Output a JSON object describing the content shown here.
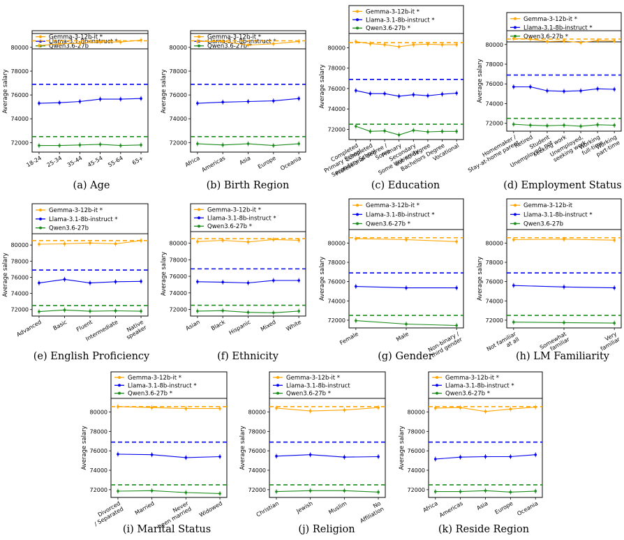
{
  "figure": {
    "colors": {
      "gemma": "#ffa500",
      "llama": "#0000ee",
      "qwen": "#1a8c1a"
    },
    "ylabel": "Average salary"
  },
  "chart_data": [
    {
      "type": "line",
      "caption": "(a) Age",
      "categories": [
        "18-24",
        "25-34",
        "35-44",
        "45-54",
        "55-64",
        "65+"
      ],
      "ylabel": "Average salary",
      "ylim": [
        71200,
        81400
      ],
      "yticks": [
        72000,
        74000,
        76000,
        78000,
        80000
      ],
      "series": [
        {
          "name": "Gemma-3-12b-it *",
          "values": [
            80150,
            80300,
            80350,
            80450,
            80450,
            80600
          ],
          "baseline": 80550
        },
        {
          "name": "Llama-3.1-8b-instruct *",
          "values": [
            75300,
            75350,
            75450,
            75650,
            75650,
            75700
          ],
          "baseline": 76900
        },
        {
          "name": "Qwen3.6-27b",
          "values": [
            71750,
            71750,
            71800,
            71850,
            71750,
            71800
          ],
          "baseline": 72500
        }
      ]
    },
    {
      "type": "line",
      "caption": "(b) Birth Region",
      "categories": [
        "Africa",
        "Americas",
        "Asia",
        "Europe",
        "Oceania"
      ],
      "ylabel": "Average salary",
      "ylim": [
        71200,
        81400
      ],
      "yticks": [
        72000,
        74000,
        76000,
        78000,
        80000
      ],
      "series": [
        {
          "name": "Gemma-3-12b-it *",
          "values": [
            80500,
            80500,
            80200,
            80300,
            80500
          ],
          "baseline": 80550
        },
        {
          "name": "Llama-3.1-8b-instruct *",
          "values": [
            75300,
            75400,
            75450,
            75500,
            75700
          ],
          "baseline": 76900
        },
        {
          "name": "Qwen3.6-27b *",
          "values": [
            71900,
            71800,
            71900,
            71750,
            71900
          ],
          "baseline": 72500
        }
      ]
    },
    {
      "type": "line",
      "caption": "(c) Education",
      "categories": [
        "Completed Primary School",
        "Completed Secondary School",
        "Professional degree / Some",
        "Primary",
        "Secondary Some University",
        "but no degree",
        "Bachelors Degree",
        "Vocational"
      ],
      "ylabel": "Average salary",
      "ylim": [
        71000,
        81400
      ],
      "yticks": [
        72000,
        74000,
        76000,
        78000,
        80000
      ],
      "series": [
        {
          "name": "Gemma-3-12b-it *",
          "values": [
            80600,
            80400,
            80300,
            80100,
            80300,
            80350,
            80300,
            80300
          ],
          "baseline": 80500
        },
        {
          "name": "Llama-3.1-8b-instruct *",
          "values": [
            75800,
            75500,
            75500,
            75250,
            75400,
            75300,
            75450,
            75550
          ],
          "baseline": 76900
        },
        {
          "name": "Qwen3.6-27b *",
          "values": [
            72300,
            71800,
            71850,
            71450,
            71900,
            71750,
            71800,
            71800
          ],
          "baseline": 72500
        }
      ]
    },
    {
      "type": "line",
      "caption": "(d) Employment Status",
      "categories": [
        "Homemaker / Stay-at-home parent",
        "Retired",
        "Student",
        "Unemployed, not seeking work",
        "Unemployed, seeking work",
        "Working full-time",
        "Working part-time"
      ],
      "ylabel": "Average salary",
      "ylim": [
        71200,
        81400
      ],
      "yticks": [
        72000,
        74000,
        76000,
        78000,
        80000
      ],
      "series": [
        {
          "name": "Gemma-3-12b-it *",
          "values": [
            80600,
            80550,
            80300,
            80350,
            80200,
            80400,
            80350
          ],
          "baseline": 80550
        },
        {
          "name": "Llama-3.1-8b-instruct *",
          "values": [
            75700,
            75700,
            75300,
            75250,
            75300,
            75500,
            75450
          ],
          "baseline": 76900
        },
        {
          "name": "Qwen3.6-27b *",
          "values": [
            71900,
            71800,
            71750,
            71800,
            71700,
            71850,
            71800
          ],
          "baseline": 72500
        }
      ]
    },
    {
      "type": "line",
      "caption": "(e) English Proficiency",
      "categories": [
        "Advanced",
        "Basic",
        "Fluent",
        "Intermediate",
        "Native speaker"
      ],
      "ylabel": "Average salary",
      "ylim": [
        71200,
        81400
      ],
      "yticks": [
        72000,
        74000,
        76000,
        78000,
        80000
      ],
      "series": [
        {
          "name": "Gemma-3-12b-it *",
          "values": [
            80100,
            80150,
            80250,
            80150,
            80550
          ],
          "baseline": 80550
        },
        {
          "name": "Llama-3.1-8b-instruct *",
          "values": [
            75300,
            75750,
            75300,
            75450,
            75500
          ],
          "baseline": 76900
        },
        {
          "name": "Qwen3.6-27b",
          "values": [
            71750,
            71950,
            71800,
            71850,
            71800
          ],
          "baseline": 72500
        }
      ]
    },
    {
      "type": "line",
      "caption": "(f) Ethnicity",
      "categories": [
        "Asian",
        "Black",
        "Hispanic",
        "Mixed",
        "White"
      ],
      "ylabel": "Average salary",
      "ylim": [
        71200,
        81400
      ],
      "yticks": [
        72000,
        74000,
        76000,
        78000,
        80000
      ],
      "series": [
        {
          "name": "Gemma-3-12b-it *",
          "values": [
            80200,
            80350,
            80150,
            80450,
            80350
          ],
          "baseline": 80550
        },
        {
          "name": "Llama-3.1-8b-instruct *",
          "values": [
            75350,
            75300,
            75200,
            75500,
            75500
          ],
          "baseline": 76900
        },
        {
          "name": "Qwen3.6-27b *",
          "values": [
            71800,
            71850,
            71650,
            71600,
            71800
          ],
          "baseline": 72500
        }
      ]
    },
    {
      "type": "line",
      "caption": "(g) Gender",
      "categories": [
        "Female",
        "Male",
        "Non-binary / third gender"
      ],
      "ylabel": "Average salary",
      "ylim": [
        71200,
        81400
      ],
      "yticks": [
        72000,
        74000,
        76000,
        78000,
        80000
      ],
      "series": [
        {
          "name": "Gemma-3-12b-it *",
          "values": [
            80450,
            80350,
            80150
          ],
          "baseline": 80550
        },
        {
          "name": "Llama-3.1-8b-instruct *",
          "values": [
            75500,
            75350,
            75350
          ],
          "baseline": 76900
        },
        {
          "name": "Qwen3.6-27b *",
          "values": [
            71950,
            71600,
            71450
          ],
          "baseline": 72500
        }
      ]
    },
    {
      "type": "line",
      "caption": "(h) LM Familiarity",
      "categories": [
        "Not familiar at all",
        "Somewhat familiar",
        "Very familiar"
      ],
      "ylabel": "Average salary",
      "ylim": [
        71200,
        81400
      ],
      "yticks": [
        72000,
        74000,
        76000,
        78000,
        80000
      ],
      "series": [
        {
          "name": "Gemma-3-12b-it",
          "values": [
            80350,
            80400,
            80300
          ],
          "baseline": 80550
        },
        {
          "name": "Llama-3.1-8b-instruct *",
          "values": [
            75600,
            75450,
            75350
          ],
          "baseline": 76900
        },
        {
          "name": "Qwen3.6-27b",
          "values": [
            71800,
            71750,
            71700
          ],
          "baseline": 72500
        }
      ]
    },
    {
      "type": "line",
      "caption": "(i) Marital Status",
      "categories": [
        "Divorced / Separated",
        "Married",
        "Never been married",
        "Widowed"
      ],
      "ylabel": "Average salary",
      "ylim": [
        71200,
        81400
      ],
      "yticks": [
        72000,
        74000,
        76000,
        78000,
        80000
      ],
      "series": [
        {
          "name": "Gemma-3-12b-it *",
          "values": [
            80550,
            80450,
            80350,
            80350
          ],
          "baseline": 80550
        },
        {
          "name": "Llama-3.1-8b-instruct *",
          "values": [
            75650,
            75600,
            75300,
            75400
          ],
          "baseline": 76900
        },
        {
          "name": "Qwen3.6-27b *",
          "values": [
            71850,
            71900,
            71700,
            71600
          ],
          "baseline": 72500
        }
      ]
    },
    {
      "type": "line",
      "caption": "(j) Religion",
      "categories": [
        "Christian",
        "Jewish",
        "Muslim",
        "No Affiliation"
      ],
      "ylabel": "Average salary",
      "ylim": [
        71200,
        81400
      ],
      "yticks": [
        72000,
        74000,
        76000,
        78000,
        80000
      ],
      "series": [
        {
          "name": "Gemma-3-12b-it *",
          "values": [
            80400,
            80100,
            80200,
            80450
          ],
          "baseline": 80550
        },
        {
          "name": "Llama-3.1-8b-instruct",
          "values": [
            75450,
            75600,
            75350,
            75400
          ],
          "baseline": 76900
        },
        {
          "name": "Qwen3.6-27b *",
          "values": [
            71800,
            71900,
            71900,
            71750
          ],
          "baseline": 72500
        }
      ]
    },
    {
      "type": "line",
      "caption": "(k) Reside Region",
      "categories": [
        "Africa",
        "Americas",
        "Asia",
        "Europe",
        "Oceania"
      ],
      "ylabel": "Average salary",
      "ylim": [
        71200,
        81400
      ],
      "yticks": [
        72000,
        74000,
        76000,
        78000,
        80000
      ],
      "series": [
        {
          "name": "Gemma-3-12b-it *",
          "values": [
            80400,
            80450,
            80050,
            80300,
            80500
          ],
          "baseline": 80550
        },
        {
          "name": "Llama-3.1-8b-instruct *",
          "values": [
            75150,
            75350,
            75400,
            75400,
            75600
          ],
          "baseline": 76900
        },
        {
          "name": "Qwen3.6-27b *",
          "values": [
            71800,
            71800,
            71900,
            71750,
            71850
          ],
          "baseline": 72500
        }
      ]
    }
  ]
}
